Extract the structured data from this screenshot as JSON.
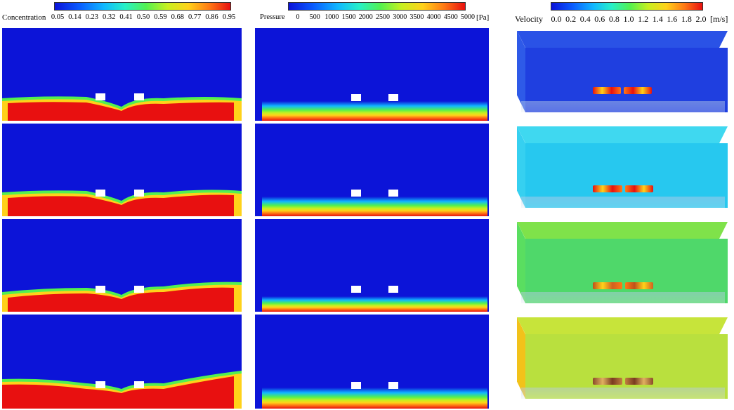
{
  "legends": {
    "concentration": {
      "label": "Concentration",
      "ticks": [
        "0.05",
        "0.14",
        "0.23",
        "0.32",
        "0.41",
        "0.50",
        "0.59",
        "0.68",
        "0.77",
        "0.86",
        "0.95"
      ]
    },
    "pressure": {
      "label": "Pressure",
      "ticks": [
        "0",
        "500",
        "1000",
        "1500",
        "2000",
        "2500",
        "3000",
        "3500",
        "4000",
        "4500",
        "5000"
      ],
      "unit": "[Pa]"
    },
    "velocity": {
      "label": "Velocity",
      "ticks": [
        "0.0",
        "0.2",
        "0.4",
        "0.6",
        "0.8",
        "1.0",
        "1.2",
        "1.4",
        "1.6",
        "1.8",
        "2.0"
      ],
      "unit": "[m/s]"
    }
  },
  "colormap": [
    "#0b12d9",
    "#0a5cff",
    "#10b8ff",
    "#27f0c8",
    "#52f050",
    "#c7f020",
    "#ffd21a",
    "#ff7a14",
    "#e81010"
  ],
  "velocity_box_colors": [
    {
      "top": "#2a52e6",
      "front": "#1f3fe0",
      "side": "#2e5ae8"
    },
    {
      "top": "#3fd8f0",
      "front": "#27c8ef",
      "side": "#36d0f0"
    },
    {
      "top": "#7fe24a",
      "front": "#4fd86a",
      "side": "#5ade60"
    },
    {
      "top": "#c7e43a",
      "front": "#b9e03e",
      "side": "#f2c21a"
    }
  ]
}
